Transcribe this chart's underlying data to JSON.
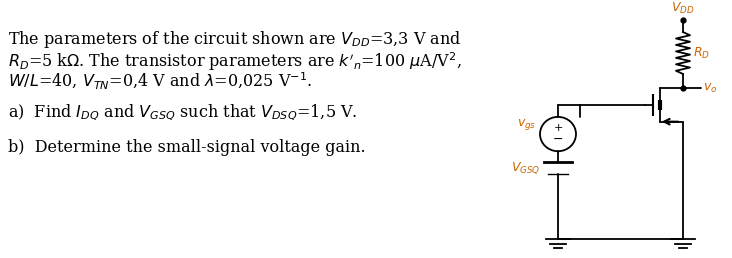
{
  "text_color": "#000000",
  "label_color": "#cc6600",
  "fig_width": 7.32,
  "fig_height": 2.58,
  "dpi": 100,
  "fontsize_main": 11.5,
  "fontsize_label": 9.0
}
